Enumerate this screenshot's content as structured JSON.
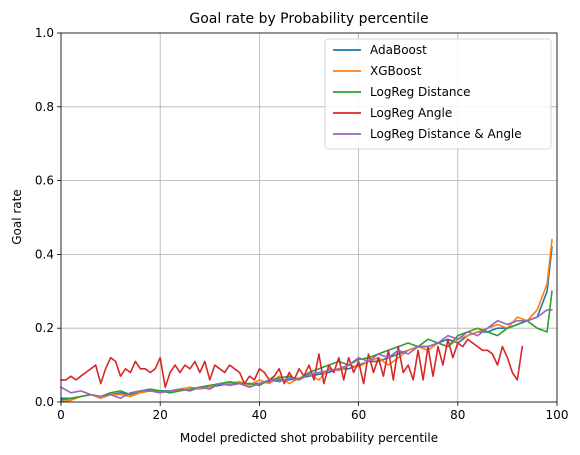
{
  "chart_data": {
    "type": "line",
    "title": "Goal rate by Probability percentile",
    "xlabel": "Model predicted shot probability percentile",
    "ylabel": "Goal rate",
    "xlim": [
      0,
      100
    ],
    "ylim": [
      0,
      1.0
    ],
    "xticks": [
      0,
      20,
      40,
      60,
      80,
      100
    ],
    "yticks": [
      0.0,
      0.2,
      0.4,
      0.6,
      0.8,
      1.0
    ],
    "xtick_labels": [
      "0",
      "20",
      "40",
      "60",
      "80",
      "100"
    ],
    "ytick_labels": [
      "0.0",
      "0.2",
      "0.4",
      "0.6",
      "0.8",
      "1.0"
    ],
    "grid": true,
    "legend_position": "top-right",
    "series": [
      {
        "name": "AdaBoost",
        "color": "#1f77b4",
        "x": [
          0,
          2,
          4,
          6,
          8,
          10,
          12,
          14,
          16,
          18,
          20,
          22,
          24,
          26,
          28,
          30,
          32,
          34,
          36,
          38,
          40,
          42,
          44,
          46,
          48,
          50,
          52,
          54,
          56,
          58,
          60,
          62,
          64,
          66,
          68,
          70,
          72,
          74,
          76,
          78,
          80,
          82,
          84,
          86,
          88,
          90,
          92,
          94,
          96,
          98,
          99
        ],
        "values": [
          0.01,
          0.01,
          0.015,
          0.02,
          0.015,
          0.02,
          0.025,
          0.02,
          0.03,
          0.03,
          0.03,
          0.03,
          0.035,
          0.03,
          0.04,
          0.04,
          0.045,
          0.05,
          0.05,
          0.05,
          0.05,
          0.055,
          0.06,
          0.06,
          0.065,
          0.07,
          0.075,
          0.08,
          0.09,
          0.09,
          0.1,
          0.11,
          0.11,
          0.12,
          0.13,
          0.14,
          0.15,
          0.15,
          0.16,
          0.17,
          0.16,
          0.18,
          0.19,
          0.19,
          0.2,
          0.2,
          0.21,
          0.22,
          0.23,
          0.3,
          0.42
        ]
      },
      {
        "name": "XGBoost",
        "color": "#ff7f0e",
        "x": [
          0,
          2,
          4,
          6,
          8,
          10,
          12,
          14,
          16,
          18,
          20,
          22,
          24,
          26,
          28,
          30,
          32,
          34,
          36,
          38,
          40,
          42,
          44,
          46,
          48,
          50,
          52,
          54,
          56,
          58,
          60,
          62,
          64,
          66,
          68,
          70,
          72,
          74,
          76,
          78,
          80,
          82,
          84,
          86,
          88,
          90,
          92,
          94,
          96,
          98,
          99
        ],
        "values": [
          0.0,
          0.005,
          0.015,
          0.02,
          0.01,
          0.02,
          0.02,
          0.015,
          0.025,
          0.03,
          0.03,
          0.025,
          0.035,
          0.04,
          0.035,
          0.04,
          0.05,
          0.05,
          0.055,
          0.045,
          0.06,
          0.05,
          0.07,
          0.05,
          0.065,
          0.075,
          0.06,
          0.09,
          0.085,
          0.1,
          0.095,
          0.11,
          0.12,
          0.1,
          0.12,
          0.14,
          0.15,
          0.14,
          0.16,
          0.15,
          0.17,
          0.18,
          0.19,
          0.2,
          0.21,
          0.2,
          0.23,
          0.22,
          0.25,
          0.32,
          0.44
        ]
      },
      {
        "name": "LogReg Distance",
        "color": "#2ca02c",
        "x": [
          0,
          2,
          4,
          6,
          8,
          10,
          12,
          14,
          16,
          18,
          20,
          22,
          24,
          26,
          28,
          30,
          32,
          34,
          36,
          38,
          40,
          42,
          44,
          46,
          48,
          50,
          52,
          54,
          56,
          58,
          60,
          62,
          64,
          66,
          68,
          70,
          72,
          74,
          76,
          78,
          80,
          82,
          84,
          86,
          88,
          90,
          92,
          94,
          96,
          98,
          99
        ],
        "values": [
          0.005,
          0.01,
          0.015,
          0.02,
          0.015,
          0.025,
          0.03,
          0.02,
          0.03,
          0.035,
          0.03,
          0.025,
          0.03,
          0.035,
          0.04,
          0.045,
          0.05,
          0.055,
          0.05,
          0.05,
          0.045,
          0.06,
          0.065,
          0.07,
          0.06,
          0.08,
          0.09,
          0.1,
          0.11,
          0.1,
          0.115,
          0.12,
          0.13,
          0.14,
          0.15,
          0.16,
          0.15,
          0.17,
          0.16,
          0.15,
          0.18,
          0.19,
          0.2,
          0.19,
          0.18,
          0.2,
          0.21,
          0.22,
          0.2,
          0.19,
          0.3
        ]
      },
      {
        "name": "LogReg Angle",
        "color": "#d62728",
        "x": [
          0,
          1,
          2,
          3,
          4,
          5,
          6,
          7,
          8,
          9,
          10,
          11,
          12,
          13,
          14,
          15,
          16,
          17,
          18,
          19,
          20,
          21,
          22,
          23,
          24,
          25,
          26,
          27,
          28,
          29,
          30,
          31,
          32,
          33,
          34,
          35,
          36,
          37,
          38,
          39,
          40,
          41,
          42,
          43,
          44,
          45,
          46,
          47,
          48,
          49,
          50,
          51,
          52,
          53,
          54,
          55,
          56,
          57,
          58,
          59,
          60,
          61,
          62,
          63,
          64,
          65,
          66,
          67,
          68,
          69,
          70,
          71,
          72,
          73,
          74,
          75,
          76,
          77,
          78,
          79,
          80,
          81,
          82,
          83,
          84,
          85,
          86,
          87,
          88,
          89,
          90,
          91,
          92,
          93
        ],
        "values": [
          0.06,
          0.06,
          0.07,
          0.06,
          0.07,
          0.08,
          0.09,
          0.1,
          0.05,
          0.09,
          0.12,
          0.11,
          0.07,
          0.09,
          0.08,
          0.11,
          0.09,
          0.09,
          0.08,
          0.09,
          0.12,
          0.04,
          0.08,
          0.1,
          0.08,
          0.1,
          0.09,
          0.11,
          0.08,
          0.11,
          0.06,
          0.1,
          0.09,
          0.08,
          0.1,
          0.09,
          0.08,
          0.05,
          0.07,
          0.06,
          0.09,
          0.08,
          0.06,
          0.07,
          0.09,
          0.05,
          0.08,
          0.06,
          0.09,
          0.07,
          0.1,
          0.06,
          0.13,
          0.05,
          0.1,
          0.08,
          0.12,
          0.06,
          0.12,
          0.08,
          0.11,
          0.05,
          0.13,
          0.08,
          0.12,
          0.07,
          0.14,
          0.06,
          0.15,
          0.08,
          0.1,
          0.06,
          0.14,
          0.06,
          0.15,
          0.07,
          0.15,
          0.1,
          0.17,
          0.12,
          0.16,
          0.15,
          0.17,
          0.16,
          0.15,
          0.14,
          0.14,
          0.13,
          0.1,
          0.15,
          0.12,
          0.08,
          0.06,
          0.15
        ]
      },
      {
        "name": "LogReg Distance & Angle",
        "color": "#9467bd",
        "x": [
          0,
          2,
          4,
          6,
          8,
          10,
          12,
          14,
          16,
          18,
          20,
          22,
          24,
          26,
          28,
          30,
          32,
          34,
          36,
          38,
          40,
          42,
          44,
          46,
          48,
          50,
          52,
          54,
          56,
          58,
          60,
          62,
          64,
          66,
          68,
          70,
          72,
          74,
          76,
          78,
          80,
          82,
          84,
          86,
          88,
          90,
          92,
          94,
          96,
          98,
          99
        ],
        "values": [
          0.04,
          0.025,
          0.03,
          0.02,
          0.015,
          0.02,
          0.01,
          0.025,
          0.03,
          0.03,
          0.025,
          0.03,
          0.035,
          0.03,
          0.04,
          0.035,
          0.05,
          0.045,
          0.05,
          0.04,
          0.05,
          0.06,
          0.055,
          0.065,
          0.06,
          0.075,
          0.08,
          0.085,
          0.09,
          0.1,
          0.12,
          0.11,
          0.13,
          0.12,
          0.14,
          0.13,
          0.15,
          0.15,
          0.16,
          0.18,
          0.17,
          0.19,
          0.18,
          0.2,
          0.22,
          0.21,
          0.22,
          0.22,
          0.23,
          0.25,
          0.25
        ]
      }
    ]
  }
}
